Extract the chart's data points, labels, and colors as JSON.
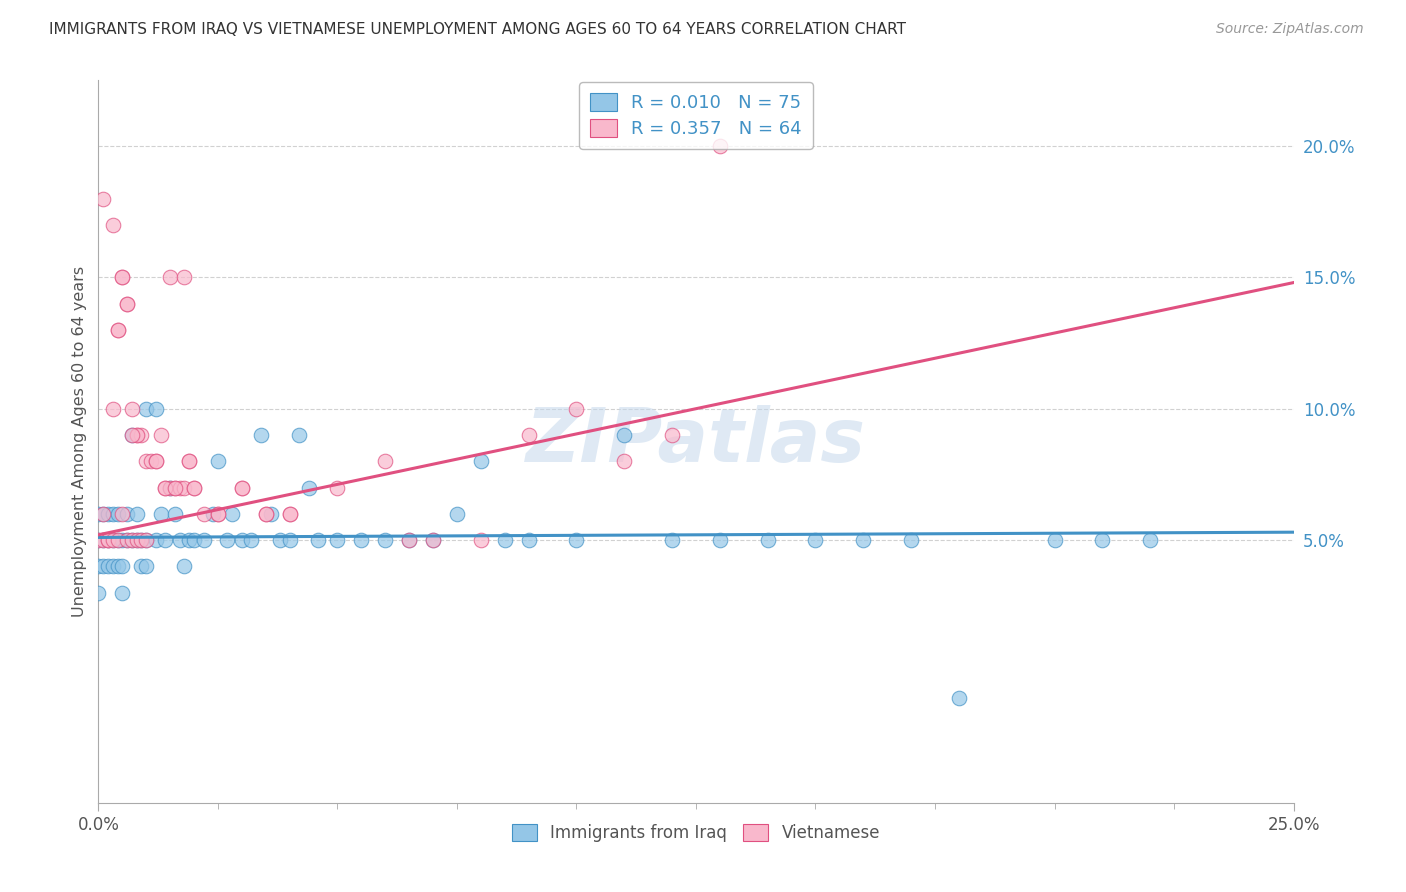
{
  "title": "IMMIGRANTS FROM IRAQ VS VIETNAMESE UNEMPLOYMENT AMONG AGES 60 TO 64 YEARS CORRELATION CHART",
  "source": "Source: ZipAtlas.com",
  "ylabel": "Unemployment Among Ages 60 to 64 years",
  "xlim": [
    0.0,
    0.25
  ],
  "ylim": [
    -0.05,
    0.225
  ],
  "ytick_positions": [
    0.05,
    0.1,
    0.15,
    0.2
  ],
  "ytick_labels": [
    "5.0%",
    "10.0%",
    "15.0%",
    "20.0%"
  ],
  "grid_color": "#cccccc",
  "background_color": "#ffffff",
  "watermark": "ZIPatlas",
  "watermark_color": "#c5d8ec",
  "legend_R1": "R = 0.010",
  "legend_N1": "N = 75",
  "legend_R2": "R = 0.357",
  "legend_N2": "N = 64",
  "color_iraq": "#94c6e7",
  "color_viet": "#f9b8cc",
  "trendline_iraq_color": "#4292c6",
  "trendline_viet_color": "#e05080",
  "label_color": "#555555",
  "title_color": "#333333",
  "iraq_trend_x": [
    0.0,
    0.25
  ],
  "iraq_trend_y": [
    0.051,
    0.053
  ],
  "viet_trend_x": [
    0.0,
    0.25
  ],
  "viet_trend_y": [
    0.052,
    0.148
  ],
  "iraq_x": [
    0.0,
    0.0,
    0.0,
    0.0,
    0.001,
    0.001,
    0.001,
    0.002,
    0.002,
    0.002,
    0.003,
    0.003,
    0.003,
    0.004,
    0.004,
    0.004,
    0.005,
    0.005,
    0.005,
    0.006,
    0.006,
    0.007,
    0.007,
    0.008,
    0.008,
    0.009,
    0.009,
    0.01,
    0.01,
    0.01,
    0.012,
    0.012,
    0.013,
    0.014,
    0.015,
    0.016,
    0.017,
    0.018,
    0.019,
    0.02,
    0.022,
    0.024,
    0.025,
    0.027,
    0.028,
    0.03,
    0.032,
    0.034,
    0.036,
    0.038,
    0.04,
    0.042,
    0.044,
    0.046,
    0.05,
    0.055,
    0.06,
    0.065,
    0.07,
    0.075,
    0.08,
    0.085,
    0.09,
    0.1,
    0.11,
    0.12,
    0.13,
    0.14,
    0.15,
    0.16,
    0.17,
    0.18,
    0.2,
    0.21,
    0.22
  ],
  "iraq_y": [
    0.05,
    0.04,
    0.06,
    0.03,
    0.05,
    0.04,
    0.06,
    0.05,
    0.04,
    0.06,
    0.05,
    0.04,
    0.06,
    0.05,
    0.04,
    0.06,
    0.05,
    0.04,
    0.03,
    0.05,
    0.06,
    0.05,
    0.09,
    0.05,
    0.06,
    0.05,
    0.04,
    0.05,
    0.04,
    0.1,
    0.05,
    0.1,
    0.06,
    0.05,
    0.07,
    0.06,
    0.05,
    0.04,
    0.05,
    0.05,
    0.05,
    0.06,
    0.08,
    0.05,
    0.06,
    0.05,
    0.05,
    0.09,
    0.06,
    0.05,
    0.05,
    0.09,
    0.07,
    0.05,
    0.05,
    0.05,
    0.05,
    0.05,
    0.05,
    0.06,
    0.08,
    0.05,
    0.05,
    0.05,
    0.09,
    0.05,
    0.05,
    0.05,
    0.05,
    0.05,
    0.05,
    -0.01,
    0.05,
    0.05,
    0.05
  ],
  "viet_x": [
    0.0,
    0.001,
    0.001,
    0.002,
    0.002,
    0.003,
    0.003,
    0.004,
    0.004,
    0.005,
    0.005,
    0.006,
    0.006,
    0.007,
    0.007,
    0.008,
    0.008,
    0.009,
    0.009,
    0.01,
    0.01,
    0.011,
    0.012,
    0.013,
    0.014,
    0.015,
    0.016,
    0.017,
    0.018,
    0.019,
    0.02,
    0.022,
    0.025,
    0.03,
    0.035,
    0.04,
    0.05,
    0.06,
    0.065,
    0.07,
    0.08,
    0.09,
    0.1,
    0.11,
    0.12,
    0.13,
    0.015,
    0.018,
    0.004,
    0.006,
    0.008,
    0.012,
    0.014,
    0.016,
    0.019,
    0.02,
    0.025,
    0.03,
    0.035,
    0.04,
    0.001,
    0.003,
    0.005,
    0.007
  ],
  "viet_y": [
    0.05,
    0.05,
    0.06,
    0.05,
    0.05,
    0.05,
    0.17,
    0.05,
    0.13,
    0.06,
    0.15,
    0.05,
    0.14,
    0.05,
    0.1,
    0.05,
    0.09,
    0.05,
    0.09,
    0.05,
    0.08,
    0.08,
    0.08,
    0.09,
    0.07,
    0.07,
    0.07,
    0.07,
    0.07,
    0.08,
    0.07,
    0.06,
    0.06,
    0.07,
    0.06,
    0.06,
    0.07,
    0.08,
    0.05,
    0.05,
    0.05,
    0.09,
    0.1,
    0.08,
    0.09,
    0.2,
    0.15,
    0.15,
    0.13,
    0.14,
    0.09,
    0.08,
    0.07,
    0.07,
    0.08,
    0.07,
    0.06,
    0.07,
    0.06,
    0.06,
    0.18,
    0.1,
    0.15,
    0.09
  ]
}
